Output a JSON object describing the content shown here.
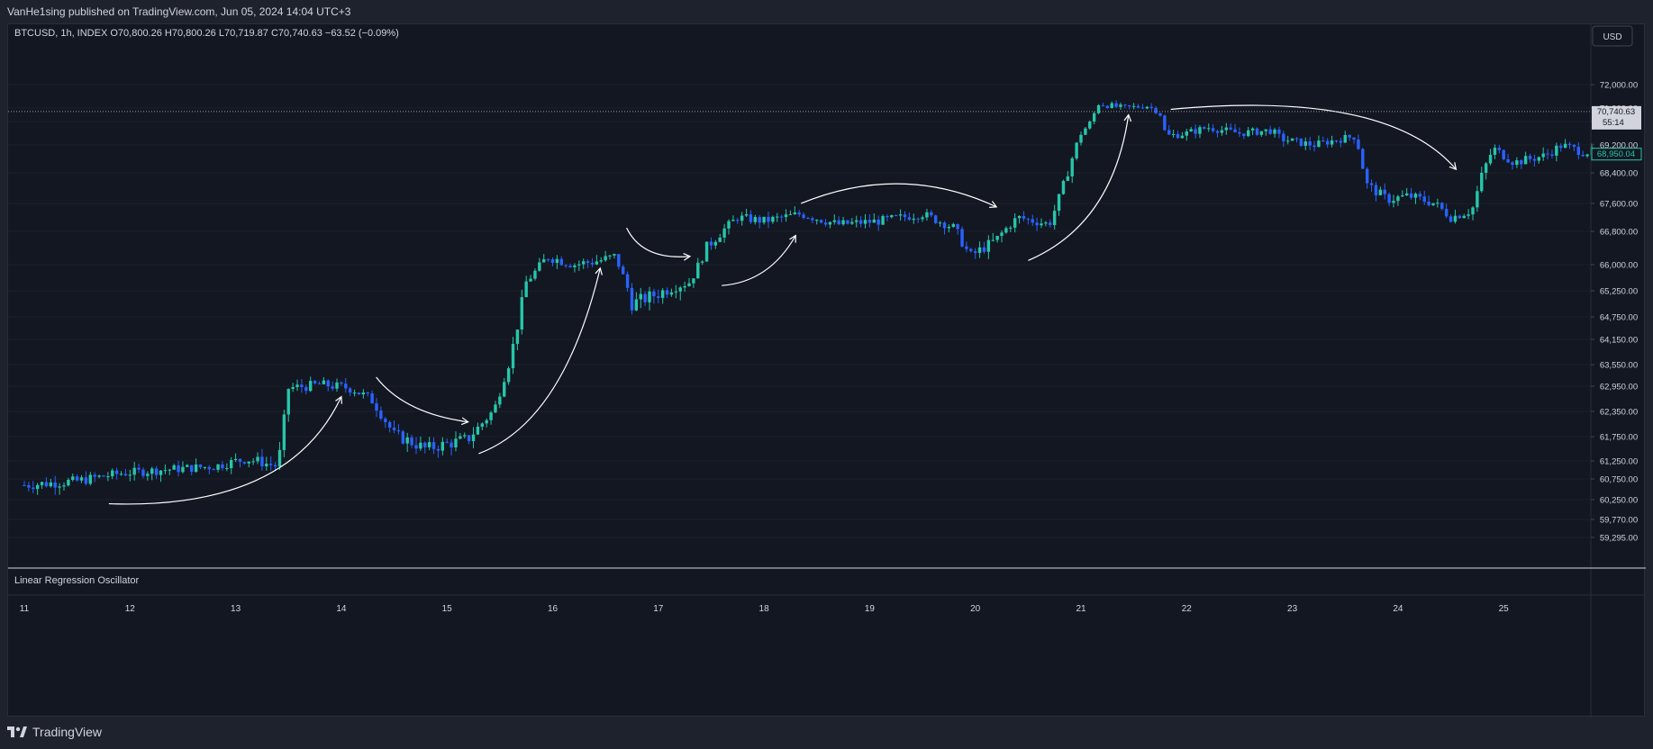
{
  "header": {
    "published": "VanHe1sing published on TradingView.com, Jun 05, 2024 14:04 UTC+3",
    "symbol_line": "BTCUSD, 1h, INDEX  O70,800.26  H70,800.26  L70,719.87  C70,740.63  −63.52 (−0.09%)"
  },
  "currency_button": "USD",
  "indicator_label": "Linear Regression Oscillator",
  "footer": {
    "brand": "TradingView"
  },
  "price_tags": {
    "last_price": "70,740.63",
    "countdown": "55:14",
    "secondary_price": "68,950.04"
  },
  "colors": {
    "background": "#131722",
    "up": "#26c6aa",
    "down": "#2962ff",
    "text": "#d1d4dc",
    "grid": "#2a2e39"
  },
  "chart_data": {
    "type": "candlestick",
    "y_ticks": [
      72000,
      71000,
      70000,
      69200,
      68400,
      67600,
      66800,
      66000,
      65250,
      64750,
      64150,
      63550,
      62950,
      62350,
      61750,
      61250,
      60750,
      60250,
      59770,
      59295
    ],
    "y_tick_labels": [
      "72,000.00",
      "71,000.00",
      "70,000.00",
      "69,200.00",
      "68,400.00",
      "67,600.00",
      "66,800.00",
      "66,000.00",
      "65,250.00",
      "64,750.00",
      "64,150.00",
      "63,550.00",
      "62,950.00",
      "62,350.00",
      "61,750.00",
      "61,250.00",
      "60,750.00",
      "60,250.00",
      "59,770.00",
      "59,295.00"
    ],
    "x_ticks": [
      11,
      12,
      13,
      14,
      15,
      16,
      17,
      18,
      19,
      20,
      21,
      22,
      23,
      24,
      25
    ],
    "x_label_suffix": "",
    "close_path": [
      [
        11.0,
        60600
      ],
      [
        11.5,
        60700
      ],
      [
        11.9,
        60900
      ],
      [
        12.3,
        61000
      ],
      [
        12.8,
        61100
      ],
      [
        13.1,
        61300
      ],
      [
        13.4,
        61100
      ],
      [
        13.5,
        62900
      ],
      [
        13.8,
        63000
      ],
      [
        14.1,
        62900
      ],
      [
        14.3,
        62600
      ],
      [
        14.5,
        61800
      ],
      [
        14.8,
        61500
      ],
      [
        15.0,
        61600
      ],
      [
        15.2,
        61700
      ],
      [
        15.45,
        62400
      ],
      [
        15.6,
        63700
      ],
      [
        15.75,
        65500
      ],
      [
        15.95,
        66200
      ],
      [
        16.2,
        66000
      ],
      [
        16.45,
        66100
      ],
      [
        16.6,
        66200
      ],
      [
        16.75,
        65000
      ],
      [
        17.0,
        65200
      ],
      [
        17.3,
        65500
      ],
      [
        17.45,
        66400
      ],
      [
        17.75,
        67200
      ],
      [
        18.0,
        67100
      ],
      [
        18.35,
        67300
      ],
      [
        18.7,
        67000
      ],
      [
        19.1,
        67100
      ],
      [
        19.5,
        67300
      ],
      [
        19.8,
        66900
      ],
      [
        19.95,
        66200
      ],
      [
        20.2,
        66600
      ],
      [
        20.4,
        67200
      ],
      [
        20.7,
        67000
      ],
      [
        20.85,
        68200
      ],
      [
        21.0,
        69600
      ],
      [
        21.1,
        70000
      ],
      [
        21.15,
        71200
      ],
      [
        21.4,
        71000
      ],
      [
        21.65,
        71100
      ],
      [
        21.75,
        70500
      ],
      [
        21.8,
        69500
      ],
      [
        22.0,
        69600
      ],
      [
        22.2,
        69800
      ],
      [
        22.5,
        69600
      ],
      [
        22.8,
        69700
      ],
      [
        22.9,
        69400
      ],
      [
        23.2,
        69200
      ],
      [
        23.45,
        69400
      ],
      [
        23.6,
        69500
      ],
      [
        23.7,
        68100
      ],
      [
        23.9,
        67700
      ],
      [
        24.1,
        67800
      ],
      [
        24.35,
        67600
      ],
      [
        24.5,
        67200
      ],
      [
        24.7,
        67400
      ],
      [
        24.8,
        68400
      ],
      [
        24.9,
        69100
      ],
      [
        25.1,
        68700
      ],
      [
        25.4,
        68900
      ],
      [
        25.55,
        69200
      ],
      [
        25.75,
        69000
      ]
    ],
    "arrows": [
      {
        "from": [
          11.8,
          60150
        ],
        "via": [
          13.5,
          60000
        ],
        "to": [
          14.0,
          62700
        ]
      },
      {
        "from": [
          14.33,
          63200
        ],
        "via": [
          14.6,
          62300
        ],
        "to": [
          15.2,
          62100
        ]
      },
      {
        "from": [
          15.3,
          61400
        ],
        "via": [
          16.1,
          62100
        ],
        "to": [
          16.45,
          65900
        ]
      },
      {
        "from": [
          16.7,
          66900
        ],
        "via": [
          16.85,
          66100
        ],
        "to": [
          17.3,
          66200
        ]
      },
      {
        "from": [
          17.6,
          65400
        ],
        "via": [
          18.05,
          65500
        ],
        "to": [
          18.3,
          66700
        ]
      },
      {
        "from": [
          18.35,
          67600
        ],
        "via": [
          19.3,
          68700
        ],
        "to": [
          20.2,
          67500
        ]
      },
      {
        "from": [
          20.5,
          66100
        ],
        "via": [
          21.3,
          67000
        ],
        "to": [
          21.45,
          70500
        ]
      },
      {
        "from": [
          21.85,
          70900
        ],
        "via": [
          23.9,
          71800
        ],
        "to": [
          24.55,
          68500
        ]
      }
    ],
    "last_price": 70740.63,
    "secondary_price": 68950.04
  }
}
